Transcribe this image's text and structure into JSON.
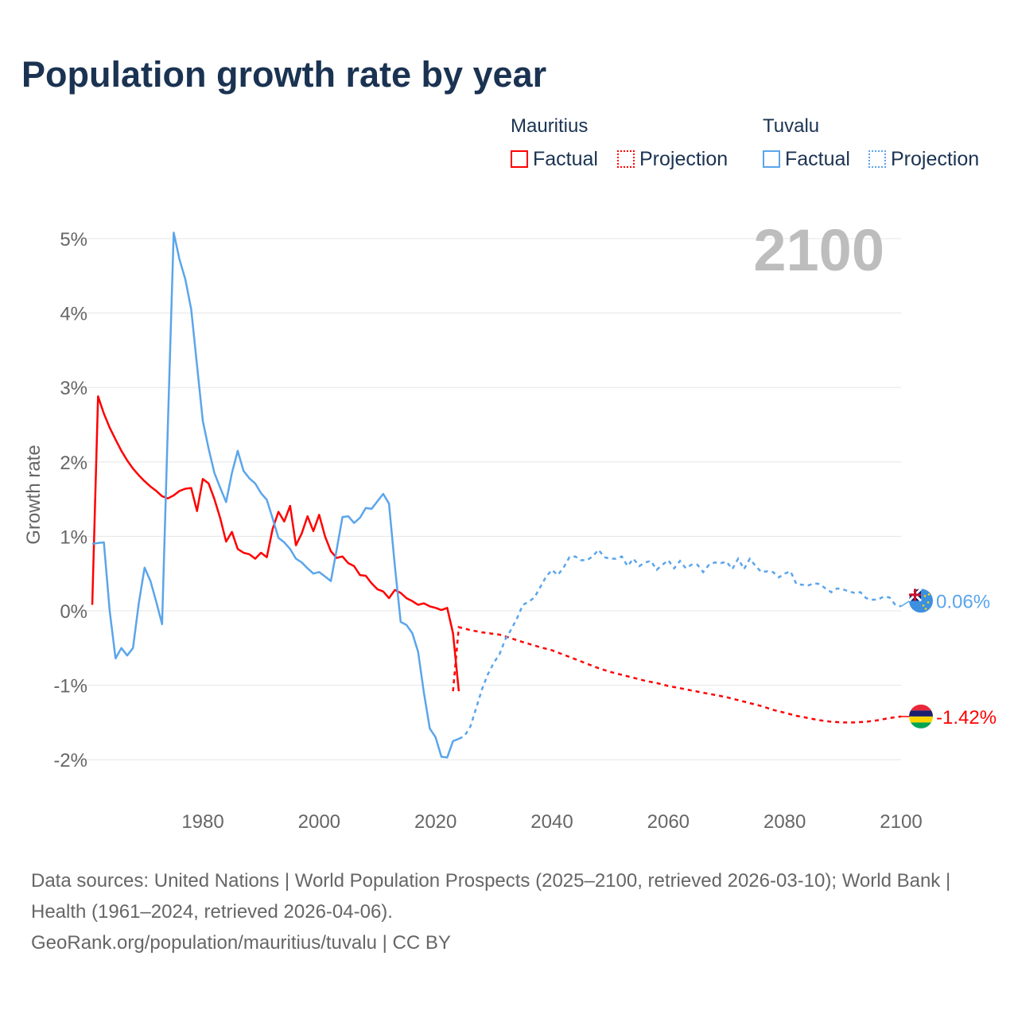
{
  "title": "Population growth rate by year",
  "legend": {
    "groups": [
      {
        "name": "Mauritius",
        "color": "#ff0000",
        "items": [
          "Factual",
          "Projection"
        ]
      },
      {
        "name": "Tuvalu",
        "color": "#5aa5ec",
        "items": [
          "Factual",
          "Projection"
        ]
      }
    ]
  },
  "current_year": "2100",
  "footer": {
    "sources": "Data sources: United Nations | World Population Prospects (2025–2100, retrieved 2026-03-10); World Bank | Health (1961–2024, retrieved 2026-04-06).",
    "attribution": "GeoRank.org/population/mauritius/tuvalu | CC BY"
  },
  "chart_data": {
    "type": "line",
    "title": "Population growth rate by year",
    "xlabel": "",
    "ylabel": "Growth rate",
    "xlim": [
      1961,
      2100
    ],
    "ylim": [
      -2.3,
      5.3
    ],
    "x_ticks": [
      1980,
      2000,
      2020,
      2040,
      2060,
      2080,
      2100
    ],
    "y_ticks": [
      -2,
      -1,
      0,
      1,
      2,
      3,
      4,
      5
    ],
    "y_tick_labels": [
      "-2%",
      "-1%",
      "0%",
      "1%",
      "2%",
      "3%",
      "4%",
      "5%"
    ],
    "grid": true,
    "series": [
      {
        "name": "Mauritius",
        "color": "#ff0000",
        "end_label": "-1.42%",
        "factual": {
          "x": [
            1961,
            1962,
            1963,
            1964,
            1965,
            1966,
            1967,
            1968,
            1969,
            1970,
            1971,
            1972,
            1973,
            1974,
            1975,
            1976,
            1977,
            1978,
            1979,
            1980,
            1981,
            1982,
            1983,
            1984,
            1985,
            1986,
            1987,
            1988,
            1989,
            1990,
            1991,
            1992,
            1993,
            1994,
            1995,
            1996,
            1997,
            1998,
            1999,
            2000,
            2001,
            2002,
            2003,
            2004,
            2005,
            2006,
            2007,
            2008,
            2009,
            2010,
            2011,
            2012,
            2013,
            2014,
            2015,
            2016,
            2017,
            2018,
            2019,
            2020,
            2021,
            2022,
            2023,
            2024
          ],
          "y": [
            0.08,
            2.88,
            2.65,
            2.46,
            2.3,
            2.15,
            2.02,
            1.91,
            1.82,
            1.74,
            1.67,
            1.61,
            1.54,
            1.51,
            1.55,
            1.61,
            1.64,
            1.65,
            1.34,
            1.77,
            1.71,
            1.5,
            1.24,
            0.93,
            1.06,
            0.83,
            0.78,
            0.76,
            0.7,
            0.78,
            0.72,
            1.1,
            1.33,
            1.2,
            1.41,
            0.88,
            1.04,
            1.27,
            1.07,
            1.29,
            1.0,
            0.8,
            0.71,
            0.73,
            0.64,
            0.6,
            0.48,
            0.47,
            0.37,
            0.29,
            0.26,
            0.17,
            0.28,
            0.24,
            0.17,
            0.13,
            0.08,
            0.1,
            0.06,
            0.04,
            0.01,
            0.04,
            -0.3,
            -1.08
          ]
        },
        "projection": {
          "x": [
            2023,
            2024,
            2026,
            2028,
            2031,
            2033,
            2035,
            2038,
            2040,
            2042,
            2044,
            2046,
            2048,
            2050,
            2052,
            2054,
            2056,
            2058,
            2060,
            2062,
            2064,
            2066,
            2068,
            2070,
            2072,
            2074,
            2076,
            2078,
            2080,
            2082,
            2084,
            2086,
            2088,
            2090,
            2092,
            2094,
            2096,
            2098,
            2100
          ],
          "y": [
            -1.08,
            -0.22,
            -0.26,
            -0.29,
            -0.32,
            -0.37,
            -0.42,
            -0.49,
            -0.53,
            -0.59,
            -0.65,
            -0.71,
            -0.77,
            -0.82,
            -0.86,
            -0.9,
            -0.94,
            -0.97,
            -1.01,
            -1.04,
            -1.07,
            -1.1,
            -1.13,
            -1.16,
            -1.2,
            -1.24,
            -1.28,
            -1.33,
            -1.37,
            -1.41,
            -1.44,
            -1.47,
            -1.49,
            -1.5,
            -1.5,
            -1.49,
            -1.47,
            -1.44,
            -1.42
          ]
        }
      },
      {
        "name": "Tuvalu",
        "color": "#5aa5ec",
        "end_label": "0.06%",
        "factual": {
          "x": [
            1961,
            1962,
            1963,
            1964,
            1965,
            1966,
            1967,
            1968,
            1969,
            1970,
            1971,
            1972,
            1973,
            1974,
            1975,
            1976,
            1977,
            1978,
            1979,
            1980,
            1981,
            1982,
            1983,
            1984,
            1985,
            1986,
            1987,
            1988,
            1989,
            1990,
            1991,
            1992,
            1993,
            1994,
            1995,
            1996,
            1997,
            1998,
            1999,
            2000,
            2001,
            2002,
            2003,
            2004,
            2005,
            2006,
            2007,
            2008,
            2009,
            2010,
            2011,
            2012,
            2013,
            2014,
            2015,
            2016,
            2017,
            2018,
            2019,
            2020,
            2021,
            2022,
            2023,
            2024
          ],
          "y": [
            0.9,
            0.91,
            0.92,
            0.0,
            -0.64,
            -0.5,
            -0.6,
            -0.5,
            0.1,
            0.58,
            0.4,
            0.12,
            -0.18,
            2.5,
            5.08,
            4.72,
            4.45,
            4.05,
            3.3,
            2.55,
            2.18,
            1.85,
            1.65,
            1.46,
            1.85,
            2.15,
            1.88,
            1.78,
            1.71,
            1.58,
            1.49,
            1.24,
            0.98,
            0.92,
            0.83,
            0.7,
            0.65,
            0.57,
            0.5,
            0.52,
            0.46,
            0.4,
            0.82,
            1.26,
            1.27,
            1.18,
            1.25,
            1.38,
            1.37,
            1.47,
            1.57,
            1.44,
            0.6,
            -0.15,
            -0.19,
            -0.3,
            -0.55,
            -1.1,
            -1.58,
            -1.7,
            -1.96,
            -1.97,
            -1.75,
            -1.72
          ]
        },
        "projection": {
          "x": [
            2024,
            2025,
            2026,
            2027,
            2028,
            2029,
            2030,
            2031,
            2032,
            2033,
            2034,
            2035,
            2036,
            2037,
            2038,
            2039,
            2040,
            2041,
            2042,
            2043,
            2044,
            2045,
            2046,
            2047,
            2048,
            2049,
            2050,
            2051,
            2052,
            2053,
            2054,
            2055,
            2056,
            2057,
            2058,
            2059,
            2060,
            2061,
            2062,
            2063,
            2064,
            2065,
            2066,
            2067,
            2068,
            2069,
            2070,
            2071,
            2072,
            2073,
            2074,
            2075,
            2076,
            2077,
            2078,
            2079,
            2080,
            2081,
            2082,
            2083,
            2084,
            2085,
            2086,
            2087,
            2088,
            2089,
            2090,
            2091,
            2092,
            2093,
            2094,
            2095,
            2096,
            2097,
            2098,
            2099,
            2100
          ],
          "y": [
            -1.72,
            -1.68,
            -1.55,
            -1.3,
            -1.05,
            -0.85,
            -0.7,
            -0.58,
            -0.38,
            -0.25,
            -0.1,
            0.08,
            0.12,
            0.18,
            0.32,
            0.46,
            0.55,
            0.48,
            0.58,
            0.72,
            0.73,
            0.68,
            0.68,
            0.73,
            0.82,
            0.72,
            0.7,
            0.7,
            0.73,
            0.6,
            0.7,
            0.6,
            0.65,
            0.67,
            0.55,
            0.62,
            0.68,
            0.57,
            0.67,
            0.57,
            0.62,
            0.62,
            0.52,
            0.62,
            0.65,
            0.64,
            0.66,
            0.56,
            0.7,
            0.56,
            0.7,
            0.6,
            0.52,
            0.53,
            0.52,
            0.45,
            0.5,
            0.53,
            0.36,
            0.35,
            0.34,
            0.37,
            0.36,
            0.3,
            0.25,
            0.3,
            0.29,
            0.26,
            0.24,
            0.25,
            0.17,
            0.15,
            0.15,
            0.19,
            0.18,
            0.08,
            0.06
          ]
        }
      }
    ]
  }
}
